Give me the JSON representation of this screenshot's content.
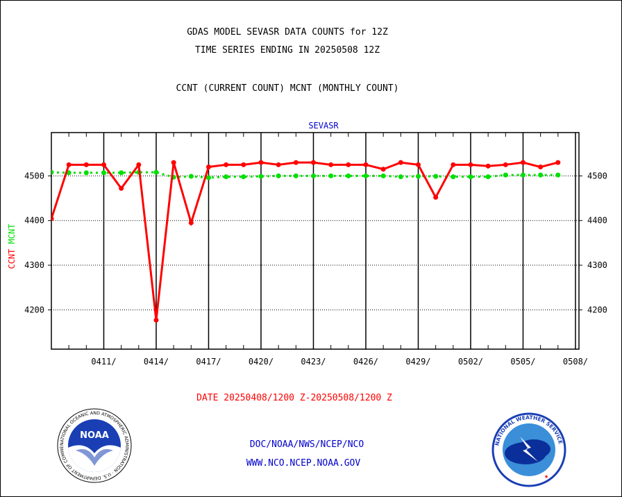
{
  "header": {
    "title_line1": "GDAS MODEL SEVASR DATA COUNTS for 12Z",
    "title_line2": "TIME SERIES ENDING IN 20250508 12Z",
    "subtitle": "CCNT (CURRENT COUNT) MCNT (MONTHLY COUNT)"
  },
  "footer": {
    "date_range": "DATE 20250408/1200 Z-20250508/1200 Z",
    "org_path": "DOC/NOAA/NWS/NCEP/NCO",
    "website": "WWW.NCO.NCEP.NOAA.GOV"
  },
  "logos": {
    "noaa_word": "NOAA",
    "noaa_ring_text": "NATIONAL OCEANIC AND ATMOSPHERIC ADMINISTRATION · U.S. DEPARTMENT OF COMMERCE",
    "nws_ring_text": "NATIONAL WEATHER SERVICE"
  },
  "colors": {
    "ccnt": "#ff0000",
    "mcnt": "#00e000",
    "text_blue": "#0000cc",
    "date_red": "#ff0000"
  },
  "chart_data": {
    "type": "line",
    "title": "SEVASR",
    "ylabel_series": [
      "CCNT",
      "MCNT"
    ],
    "ylim": [
      4112,
      4597
    ],
    "yticks": [
      4200,
      4300,
      4400,
      4500
    ],
    "xlim": [
      0,
      30.2
    ],
    "x_unit": "day offset from 0408",
    "xtick_positions": [
      3,
      6,
      9,
      12,
      15,
      18,
      21,
      24,
      27,
      30
    ],
    "xtick_labels": [
      "0411/",
      "0414/",
      "0417/",
      "0420/",
      "0423/",
      "0426/",
      "0429/",
      "0502/",
      "0505/",
      "0508/"
    ],
    "grid": "horizontal at y ticks; vertical at x ticks",
    "series": [
      {
        "name": "CCNT",
        "values": [
          4404,
          4525,
          4525,
          4525,
          4472,
          4525,
          4177,
          4530,
          4395,
          4520,
          4525,
          4525,
          4530,
          4525,
          4530,
          4530,
          4525,
          4525,
          4525,
          4515,
          4530,
          4525,
          4452,
          4525,
          4525,
          4522,
          4525,
          4530,
          4520,
          4530
        ]
      },
      {
        "name": "MCNT",
        "values": [
          4508,
          4507,
          4507,
          4507,
          4507,
          4508,
          4508,
          4497,
          4499,
          4496,
          4498,
          4498,
          4499,
          4500,
          4500,
          4500,
          4500,
          4500,
          4500,
          4500,
          4498,
          4499,
          4499,
          4498,
          4498,
          4498,
          4502,
          4502,
          4502,
          4502
        ]
      }
    ]
  }
}
